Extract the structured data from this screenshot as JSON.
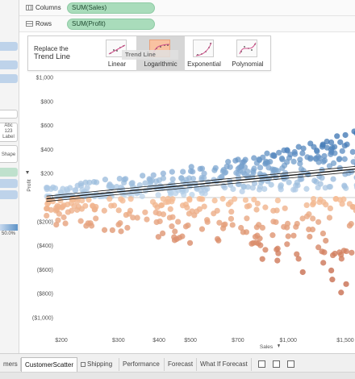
{
  "shelves": {
    "columns": {
      "label": "Columns",
      "pill": "SUM(Sales)"
    },
    "rows": {
      "label": "Rows",
      "pill": "SUM(Profit)"
    }
  },
  "sidepanel": {
    "mark_label_abc": "Abc",
    "mark_label_123": "123",
    "mark_label_text": "Label",
    "shape_text": "Shape",
    "legend_max": "50.0%"
  },
  "trend_card": {
    "title_line1": "Replace the",
    "title_line2": "Trend Line",
    "options": [
      "Linear",
      "Logarithmic",
      "Exponential",
      "Polynomial"
    ],
    "selected": "Logarithmic",
    "drag_ghost": "Trend Line"
  },
  "chart_data": {
    "type": "scatter",
    "xlabel": "Sales",
    "ylabel": "Profit",
    "x_scale": "log",
    "x_ticks": [
      "$200",
      "$300",
      "$400",
      "$500",
      "$700",
      "$1,000",
      "$1,500"
    ],
    "x_tick_values": [
      200,
      300,
      400,
      500,
      700,
      1000,
      1500
    ],
    "y_ticks": [
      "$1,000",
      "$800",
      "$600",
      "$400",
      "$200",
      "$0",
      "($200)",
      "($400)",
      "($600)",
      "($800)",
      "($1,000)"
    ],
    "y_tick_values": [
      1000,
      800,
      600,
      400,
      200,
      0,
      -200,
      -400,
      -600,
      -800,
      -1000
    ],
    "ylim": [
      -1000,
      1000
    ],
    "xlim": [
      180,
      1650
    ],
    "trend_line": {
      "type": "logarithmic",
      "at_x": [
        180,
        1650
      ],
      "at_y": [
        -10,
        240
      ]
    },
    "color_encoding": "diverging blue (positive profit) to orange (negative profit)",
    "colors": {
      "positive": "#3f7fbf",
      "negative": "#e07b39",
      "trend": "#1a1a1a"
    }
  },
  "tabs": {
    "items": [
      "mers",
      "CustomerScatter",
      "Shipping",
      "Performance",
      "Forecast",
      "What If Forecast"
    ],
    "active": "CustomerScatter"
  }
}
